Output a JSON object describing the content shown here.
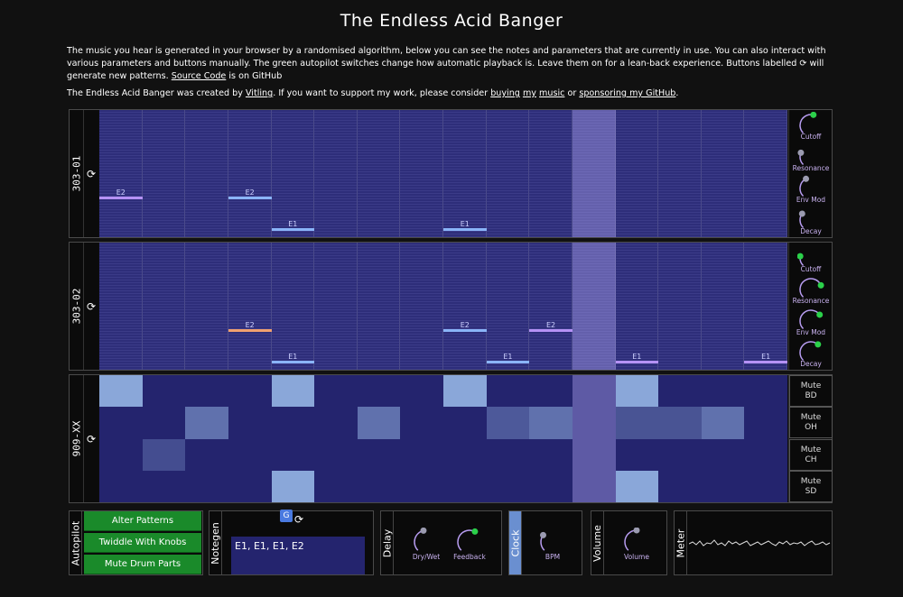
{
  "page": {
    "title": "The Endless Acid Banger",
    "intro": {
      "text_before": "The music you hear is generated in your browser by a randomised algorithm, below you can see the notes and parameters that are currently in use. You can also interact with various parameters and buttons manually. The green autopilot switches change how automatic playback is. Leave them on for a lean-back experience. Buttons labelled ",
      "icon": "refresh-icon",
      "text_mid": " will generate new patterns. ",
      "link_source": "Source Code",
      "text_after": " is on GitHub"
    },
    "credits": {
      "text_before": "The Endless Acid Banger was created by ",
      "link_author": "Vitling",
      "text_mid": ". If you want to support my work, please consider ",
      "link_buying": "buying",
      "space1": " ",
      "link_my": "my",
      "space2": " ",
      "link_music": "music",
      "text_or": " or ",
      "link_sponsor": "sponsoring my GitHub",
      "text_end": "."
    }
  },
  "colors": {
    "grid_bg": "#2e2e7a",
    "note_e2_a": "#b591f5",
    "note_e2_b": "#8ab4f8",
    "note_e2_c": "#f0a070",
    "note_e1": "#8ab4f8",
    "knob_dot": "#2bd04a",
    "knob_dot_grey": "#9b9bb0",
    "autopilot_green": "#1a8a2a"
  },
  "synth1": {
    "label": "303-01",
    "regen_icon": "refresh-icon",
    "notes": [
      {
        "step": 0,
        "label": "E2",
        "row": 0,
        "color": "#b591f5"
      },
      {
        "step": 3,
        "label": "E2",
        "row": 0,
        "color": "#8ab4f8"
      },
      {
        "step": 4,
        "label": "E1",
        "row": 1,
        "color": "#8ab4f8"
      },
      {
        "step": 8,
        "label": "E1",
        "row": 1,
        "color": "#8ab4f8"
      }
    ],
    "knobs": [
      {
        "label": "Cutoff",
        "value": 0.55,
        "active": true
      },
      {
        "label": "Resonance",
        "value": 0.25,
        "active": false
      },
      {
        "label": "Env Mod",
        "value": 0.4,
        "active": false
      },
      {
        "label": "Decay",
        "value": 0.3,
        "active": false
      }
    ]
  },
  "synth2": {
    "label": "303-02",
    "regen_icon": "refresh-icon",
    "notes": [
      {
        "step": 3,
        "label": "E2",
        "row": 0,
        "color": "#f0a070"
      },
      {
        "step": 4,
        "label": "E1",
        "row": 1,
        "color": "#8ab4f8"
      },
      {
        "step": 8,
        "label": "E2",
        "row": 0,
        "color": "#8ab4f8"
      },
      {
        "step": 9,
        "label": "E1",
        "row": 1,
        "color": "#8ab4f8"
      },
      {
        "step": 10,
        "label": "E2",
        "row": 0,
        "color": "#b591f5"
      },
      {
        "step": 12,
        "label": "E1",
        "row": 1,
        "color": "#b591f5"
      },
      {
        "step": 15,
        "label": "E1",
        "row": 1,
        "color": "#b591f5"
      }
    ],
    "knobs": [
      {
        "label": "Cutoff",
        "value": 0.2,
        "active": true
      },
      {
        "label": "Resonance",
        "value": 0.75,
        "active": true
      },
      {
        "label": "Env Mod",
        "value": 0.7,
        "active": true
      },
      {
        "label": "Decay",
        "value": 0.65,
        "active": true
      }
    ]
  },
  "drums": {
    "label": "909-XX",
    "regen_icon": "refresh-icon",
    "mute_buttons": [
      {
        "line1": "Mute",
        "line2": "BD"
      },
      {
        "line1": "Mute",
        "line2": "OH"
      },
      {
        "line1": "Mute",
        "line2": "CH"
      },
      {
        "line1": "Mute",
        "line2": "SD"
      }
    ],
    "rows": [
      [
        0.9,
        0,
        0,
        0,
        0.9,
        0,
        0,
        0,
        0.9,
        0,
        0,
        0,
        0.9,
        0,
        0,
        0
      ],
      [
        0,
        0,
        0.45,
        0,
        0,
        0,
        0.45,
        0,
        0,
        0.25,
        0.45,
        0,
        0.2,
        0.2,
        0.45,
        0
      ],
      [
        0,
        0.15,
        0,
        0,
        0,
        0,
        0,
        0,
        0,
        0,
        0,
        0,
        0,
        0,
        0,
        0
      ],
      [
        0,
        0,
        0,
        0,
        0.9,
        0,
        0,
        0,
        0,
        0,
        0,
        0,
        0.9,
        0,
        0,
        0
      ]
    ]
  },
  "playhead_step": 11,
  "autopilot": {
    "label": "Autopilot",
    "buttons": [
      "Alter Patterns",
      "Twiddle With Knobs",
      "Mute Drum Parts"
    ]
  },
  "notegen": {
    "label": "Notegen",
    "icons": [
      "translate-icon",
      "refresh-icon"
    ],
    "notes_text": "E1, E1, E1, E2"
  },
  "delay": {
    "label": "Delay",
    "knobs": [
      {
        "label": "Dry/Wet",
        "value": 0.45,
        "active": false
      },
      {
        "label": "Feedback",
        "value": 0.6,
        "active": true
      }
    ]
  },
  "clock": {
    "label": "Clock",
    "knobs": [
      {
        "label": "BPM",
        "value": 0.3,
        "active": false
      }
    ]
  },
  "volume": {
    "label": "Volume",
    "knobs": [
      {
        "label": "Volume",
        "value": 0.5,
        "active": false
      }
    ]
  },
  "meter": {
    "label": "Meter"
  }
}
